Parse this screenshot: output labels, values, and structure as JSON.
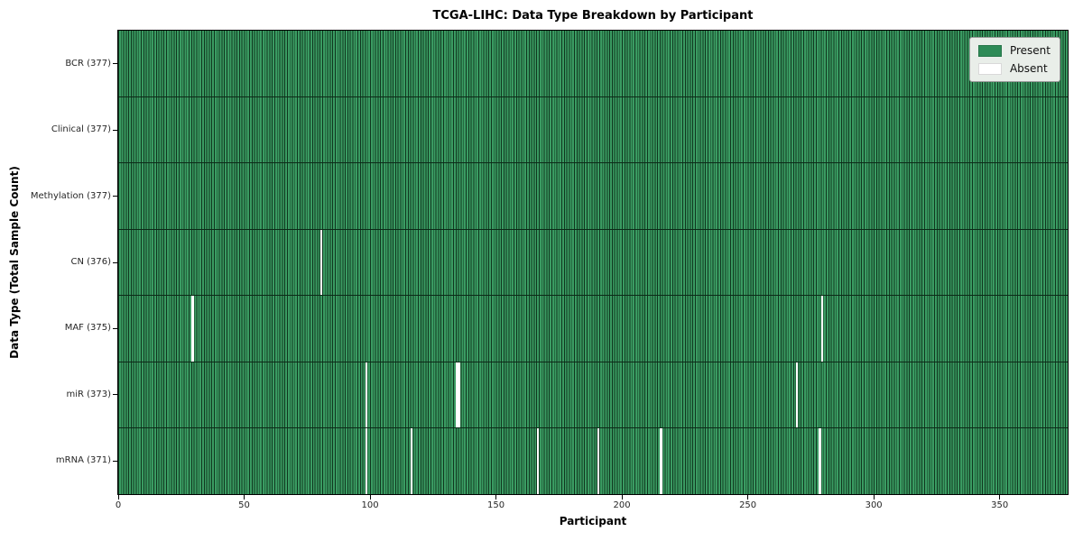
{
  "colors": {
    "present": "#2e8b57",
    "present_fill": "#3a9b62",
    "cell_edge": "#10371f",
    "absent": "#ffffff",
    "row_separator": "#0c2a18",
    "tick_color": "#000000",
    "legend_bg": "#e9eee9",
    "legend_border": "#9a9a9a"
  },
  "chart_data": {
    "type": "heatmap",
    "title": "TCGA-LIHC: Data Type Breakdown by Participant",
    "xlabel": "Participant",
    "ylabel": "Data Type (Total Sample Count)",
    "x_range": [
      0,
      377
    ],
    "x_ticks": [
      0,
      50,
      100,
      150,
      200,
      250,
      300,
      350
    ],
    "n_participants": 377,
    "grid": false,
    "legend_position": "upper right",
    "legend": [
      {
        "label": "Present",
        "color": "#2e8b57"
      },
      {
        "label": "Absent",
        "color": "#ffffff"
      }
    ],
    "rows": [
      {
        "label": "BCR (377)",
        "data_type": "BCR",
        "present_count": 377,
        "absent_count": 0,
        "absent_participants": []
      },
      {
        "label": "Clinical (377)",
        "data_type": "Clinical",
        "present_count": 377,
        "absent_count": 0,
        "absent_participants": []
      },
      {
        "label": "Methylation (377)",
        "data_type": "Methylation",
        "present_count": 377,
        "absent_count": 0,
        "absent_participants": []
      },
      {
        "label": "CN (376)",
        "data_type": "CN",
        "present_count": 376,
        "absent_count": 1,
        "absent_participants": [
          80
        ]
      },
      {
        "label": "MAF (375)",
        "data_type": "MAF",
        "present_count": 375,
        "absent_count": 2,
        "absent_participants": [
          29,
          279
        ]
      },
      {
        "label": "miR (373)",
        "data_type": "miR",
        "present_count": 373,
        "absent_count": 4,
        "absent_participants": [
          98,
          134,
          135,
          269
        ]
      },
      {
        "label": "mRNA (371)",
        "data_type": "mRNA",
        "present_count": 371,
        "absent_count": 6,
        "absent_participants": [
          98,
          116,
          166,
          190,
          215,
          278
        ]
      }
    ]
  }
}
